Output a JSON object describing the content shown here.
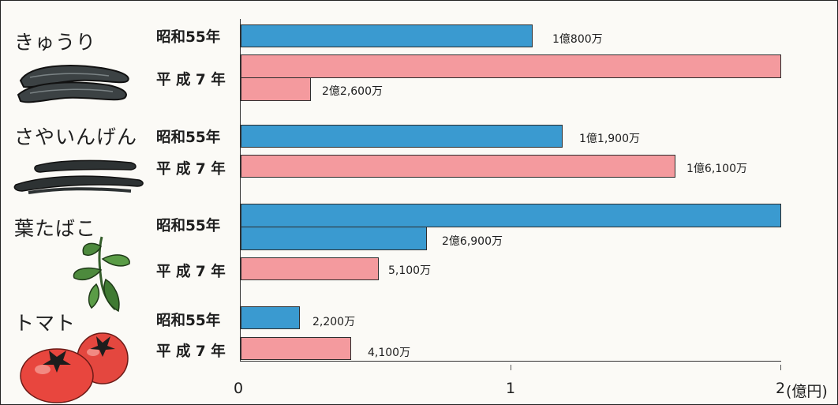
{
  "chart_data": {
    "type": "bar",
    "orientation": "horizontal",
    "unit": "億円",
    "xlim": [
      0,
      2
    ],
    "ticks": [
      "0",
      "1",
      "2"
    ],
    "unit_label": "(億円)",
    "grid": false,
    "categories": [
      {
        "name": "きゅうり",
        "bars": [
          {
            "year": "昭和55年",
            "value": 1.08,
            "label": "1億800万",
            "color": "#3a9ad0"
          },
          {
            "year": "平 成 7 年",
            "value": 2.26,
            "label": "2億2,600万",
            "color": "#f49a9e"
          }
        ]
      },
      {
        "name": "さやいんげん",
        "bars": [
          {
            "year": "昭和55年",
            "value": 1.19,
            "label": "1億1,900万",
            "color": "#3a9ad0"
          },
          {
            "year": "平 成 7 年",
            "value": 1.61,
            "label": "1億6,100万",
            "color": "#f49a9e"
          }
        ]
      },
      {
        "name": "葉たばこ",
        "bars": [
          {
            "year": "昭和55年",
            "value": 2.69,
            "label": "2億6,900万",
            "color": "#3a9ad0"
          },
          {
            "year": "平 成 7 年",
            "value": 0.51,
            "label": "5,100万",
            "color": "#f49a9e"
          }
        ]
      },
      {
        "name": "トマト",
        "bars": [
          {
            "year": "昭和55年",
            "value": 0.22,
            "label": "2,200万",
            "color": "#3a9ad0"
          },
          {
            "year": "平 成 7 年",
            "value": 0.41,
            "label": "4,100万",
            "color": "#f49a9e"
          }
        ]
      }
    ]
  }
}
